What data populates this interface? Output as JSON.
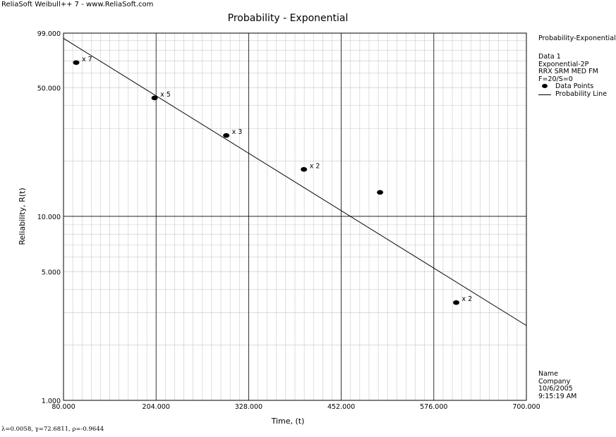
{
  "app_banner": "ReliaSoft Weibull++ 7 - www.ReliaSoft.com",
  "footer": "λ=0.0058, γ=72.6811, ρ=-0.9644",
  "legend": {
    "title": "Probability-Exponential",
    "data_name": "Data 1",
    "distribution": "Exponential-2P",
    "method": "RRX SRM MED FM",
    "counts": "F=20/S=0",
    "points_label": "Data Points",
    "line_label": "Probability Line"
  },
  "stamp": {
    "name": "Name",
    "company": "Company",
    "date": "10/6/2005",
    "time": "9:15:19 AM"
  },
  "colors": {
    "line": "#000000",
    "grid": "#c8c8c8",
    "major_grid": "#000000"
  },
  "chart_data": {
    "type": "scatter",
    "title": "Probability - Exponential",
    "xlabel": "Time, (t)",
    "ylabel": "Reliability, R(t)",
    "xlim": [
      80,
      700
    ],
    "ylim": [
      1,
      99
    ],
    "y_scale": "log",
    "grid": true,
    "legend_position": "right",
    "x_ticks": [
      80,
      204,
      328,
      452,
      576,
      700
    ],
    "x_tick_labels": [
      "80.000",
      "204.000",
      "328.000",
      "452.000",
      "576.000",
      "700.000"
    ],
    "y_ticks": [
      1,
      5,
      10,
      50,
      99
    ],
    "y_tick_labels": [
      "1.000",
      "5.000",
      "10.000",
      "50.000",
      "99.000"
    ],
    "points": [
      {
        "x": 97,
        "y": 68.5,
        "label": "x 7"
      },
      {
        "x": 202,
        "y": 44,
        "label": "x 5"
      },
      {
        "x": 298,
        "y": 27.5,
        "label": "x 3"
      },
      {
        "x": 402,
        "y": 18,
        "label": "x 2"
      },
      {
        "x": 504,
        "y": 13.5,
        "label": ""
      },
      {
        "x": 606,
        "y": 3.4,
        "label": "x 2"
      }
    ],
    "probability_line": {
      "x": [
        80,
        700
      ],
      "y": [
        92.7,
        2.55
      ]
    }
  }
}
